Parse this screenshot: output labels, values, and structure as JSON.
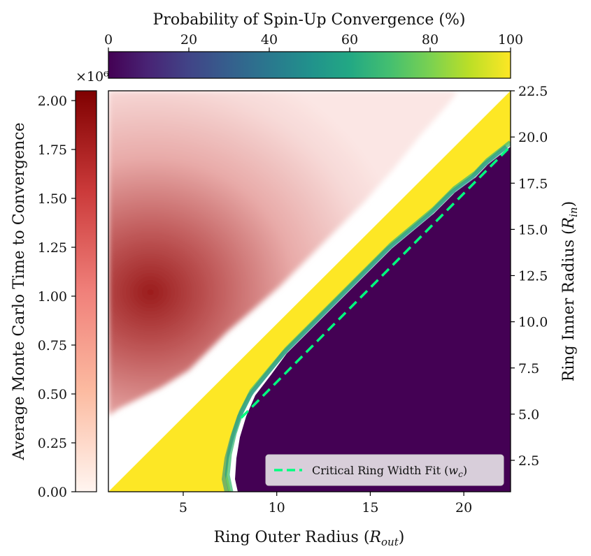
{
  "chart_data": {
    "type": "heatmap",
    "colorbar_top": {
      "title": "Probability of Spin-Up Convergence (%)",
      "range": [
        0,
        100
      ],
      "ticks": [
        "0",
        "20",
        "40",
        "60",
        "80",
        "100"
      ],
      "colormap": "viridis"
    },
    "colorbar_left": {
      "title": "Average Monte Carlo Time to Convergence",
      "range": [
        0,
        2.05
      ],
      "multiplier": "×10⁶",
      "ticks": [
        "0.00",
        "0.25",
        "0.50",
        "0.75",
        "1.00",
        "1.25",
        "1.50",
        "1.75",
        "2.00"
      ],
      "colormap": "Reds"
    },
    "x_axis": {
      "label_main": "Ring Outer Radius (",
      "label_sym": "R",
      "label_sub": "out",
      "label_end": ")",
      "range": [
        1,
        22.5
      ],
      "ticks": [
        "5",
        "10",
        "15",
        "20"
      ]
    },
    "y_axis_right": {
      "label_main": "Ring Inner Radius (",
      "label_sym": "R",
      "label_sub": "in",
      "label_end": ")",
      "range": [
        0.8,
        22.5
      ],
      "ticks": [
        "2.5",
        "5.0",
        "7.5",
        "10.0",
        "12.5",
        "15.0",
        "17.5",
        "20.0",
        "22.5"
      ]
    },
    "regions": {
      "invalid": "R_in > R_out (blank)",
      "yellow_band": "near 100% spin-up probability",
      "purple_region": "near 0% spin-up probability"
    },
    "fit_line": {
      "label_text": "Critical Ring Width Fit (",
      "label_sym": "w",
      "label_sub": "c",
      "label_end": ")",
      "points": [
        [
          8.1,
          4.8
        ],
        [
          22.5,
          19.5
        ]
      ],
      "color": "#00ff7f",
      "style": "dashed"
    },
    "legend_placement": "lower right",
    "colors": {
      "yellow": "#fde725",
      "purple": "#440154",
      "dark_red": "#7f0000",
      "fit": "#00ff7f"
    }
  }
}
